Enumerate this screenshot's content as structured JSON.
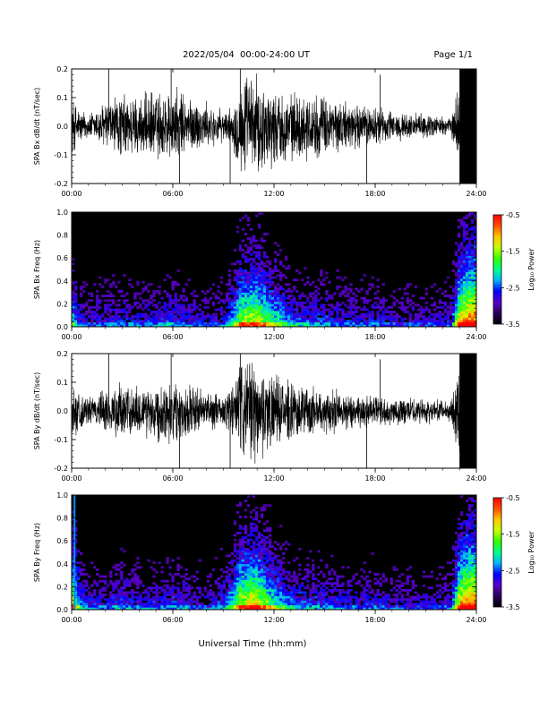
{
  "header": {
    "date_range": "2022/05/04  00:00-24:00 UT",
    "page": "Page 1/1"
  },
  "footer": {
    "xlabel": "Universal Time (hh:mm)"
  },
  "colorbar": {
    "label": "Log₁₀ Power",
    "ticks": [
      "-0.5",
      "-1.5",
      "-2.5",
      "-3.5"
    ],
    "range": [
      -3.5,
      -0.5
    ],
    "colors": [
      "#000000",
      "#2a005a",
      "#5a00c8",
      "#0000ff",
      "#00b4ff",
      "#00ff8c",
      "#32ff00",
      "#c8ff00",
      "#ffc800",
      "#ff5000",
      "#ff0000"
    ]
  },
  "chart_data": [
    {
      "type": "line",
      "ylabel": "SPA Bx dB/dt (nT/sec)",
      "xlim": [
        "00:00",
        "24:00"
      ],
      "ylim": [
        -0.2,
        0.2
      ],
      "xticks": [
        "00:00",
        "06:00",
        "12:00",
        "18:00",
        "24:00"
      ],
      "yticks": [
        "0.2",
        "0.1",
        "0.0",
        "-0.1",
        "-0.2"
      ],
      "envelope": {
        "x_hours": [
          0,
          0.5,
          1,
          2,
          3,
          4,
          5,
          6,
          7,
          8,
          9,
          9.5,
          10,
          10.5,
          11,
          12,
          13,
          14,
          15,
          16,
          17,
          18,
          19,
          20,
          21,
          22,
          22.5,
          23,
          23.5,
          24
        ],
        "amplitude": [
          0.12,
          0.07,
          0.05,
          0.1,
          0.13,
          0.12,
          0.14,
          0.15,
          0.12,
          0.09,
          0.06,
          0.07,
          0.2,
          0.2,
          0.2,
          0.15,
          0.13,
          0.13,
          0.12,
          0.1,
          0.09,
          0.08,
          0.06,
          0.05,
          0.05,
          0.04,
          0.03,
          0.2,
          0.2,
          0.2
        ]
      }
    },
    {
      "type": "heatmap",
      "ylabel": "SPA Bx Freq (Hz)",
      "xlim": [
        "00:00",
        "24:00"
      ],
      "ylim": [
        0.0,
        1.0
      ],
      "xticks": [
        "00:00",
        "06:00",
        "12:00",
        "18:00",
        "24:00"
      ],
      "yticks": [
        "1.0",
        "0.8",
        "0.6",
        "0.4",
        "0.2",
        "0.0"
      ],
      "zlabel": "Log₁₀ Power",
      "zlim": [
        -3.5,
        -0.5
      ],
      "activity": {
        "x_hours": [
          0,
          0.5,
          1,
          2,
          3,
          4,
          5,
          6,
          7,
          8,
          9,
          9.5,
          10,
          10.5,
          11,
          12,
          13,
          14,
          15,
          16,
          17,
          18,
          19,
          20,
          21,
          22,
          22.5,
          23,
          23.5,
          24
        ],
        "level": [
          0.55,
          0.3,
          0.25,
          0.3,
          0.3,
          0.3,
          0.3,
          0.35,
          0.3,
          0.25,
          0.3,
          0.45,
          0.75,
          0.8,
          0.8,
          0.6,
          0.4,
          0.35,
          0.35,
          0.3,
          0.3,
          0.3,
          0.25,
          0.25,
          0.25,
          0.25,
          0.3,
          0.9,
          1.0,
          1.0
        ]
      }
    },
    {
      "type": "line",
      "ylabel": "SPA By dB/dt (nT/sec)",
      "xlim": [
        "00:00",
        "24:00"
      ],
      "ylim": [
        -0.2,
        0.2
      ],
      "xticks": [
        "00:00",
        "06:00",
        "12:00",
        "18:00",
        "24:00"
      ],
      "yticks": [
        "0.2",
        "0.1",
        "0.0",
        "-0.1",
        "-0.2"
      ],
      "envelope": {
        "x_hours": [
          0,
          0.5,
          1,
          2,
          3,
          4,
          5,
          6,
          7,
          8,
          9,
          9.5,
          10,
          10.5,
          11,
          12,
          13,
          14,
          15,
          16,
          17,
          18,
          19,
          20,
          21,
          22,
          22.5,
          23,
          23.5,
          24
        ],
        "amplitude": [
          0.1,
          0.08,
          0.05,
          0.09,
          0.11,
          0.1,
          0.12,
          0.12,
          0.11,
          0.08,
          0.06,
          0.12,
          0.2,
          0.2,
          0.2,
          0.14,
          0.11,
          0.1,
          0.09,
          0.08,
          0.07,
          0.06,
          0.06,
          0.05,
          0.05,
          0.04,
          0.04,
          0.2,
          0.2,
          0.2
        ]
      }
    },
    {
      "type": "heatmap",
      "ylabel": "SPA By Freq (Hz)",
      "xlim": [
        "00:00",
        "24:00"
      ],
      "ylim": [
        0.0,
        1.0
      ],
      "xticks": [
        "00:00",
        "06:00",
        "12:00",
        "18:00",
        "24:00"
      ],
      "yticks": [
        "1.0",
        "0.8",
        "0.6",
        "0.4",
        "0.2",
        "0.0"
      ],
      "zlabel": "Log₁₀ Power",
      "zlim": [
        -3.5,
        -0.5
      ],
      "activity": {
        "x_hours": [
          0,
          0.5,
          1,
          2,
          3,
          4,
          5,
          6,
          7,
          8,
          9,
          9.5,
          10,
          10.5,
          11,
          12,
          13,
          14,
          15,
          16,
          17,
          18,
          19,
          20,
          21,
          22,
          22.5,
          23,
          23.5,
          24
        ],
        "level": [
          0.85,
          0.45,
          0.3,
          0.3,
          0.35,
          0.3,
          0.3,
          0.35,
          0.3,
          0.25,
          0.35,
          0.55,
          0.8,
          0.85,
          0.85,
          0.6,
          0.4,
          0.35,
          0.35,
          0.3,
          0.3,
          0.3,
          0.25,
          0.25,
          0.25,
          0.25,
          0.3,
          0.9,
          1.0,
          1.0
        ]
      }
    }
  ]
}
